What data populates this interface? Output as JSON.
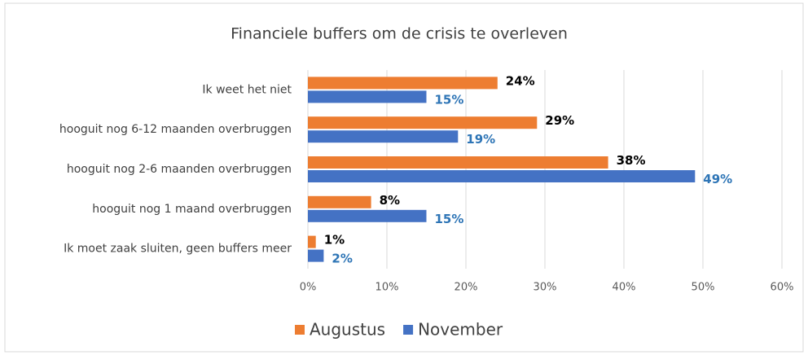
{
  "chart_data": {
    "type": "hbar",
    "title": "Financiele buffers om de crisis te overleven",
    "categories": [
      "Ik weet het niet",
      "hooguit nog 6-12 maanden overbruggen",
      "hooguit nog 2-6 maanden overbruggen",
      "hooguit nog 1 maand overbruggen",
      "Ik moet zaak sluiten,  geen buffers meer"
    ],
    "series": [
      {
        "name": "Augustus",
        "color": "#ed7d31",
        "label_color": "#000000",
        "values": [
          24,
          29,
          38,
          8,
          1
        ],
        "value_labels": [
          "24%",
          "29%",
          "38%",
          "8%",
          "1%"
        ]
      },
      {
        "name": "November",
        "color": "#4472c4",
        "label_color": "#2e75b6",
        "values": [
          15,
          19,
          49,
          15,
          2
        ],
        "value_labels": [
          "15%",
          "19%",
          "49%",
          "15%",
          "2%"
        ]
      }
    ],
    "xlim": [
      0,
      60
    ],
    "xticks": [
      {
        "value": 0,
        "label": "0%"
      },
      {
        "value": 10,
        "label": "10%"
      },
      {
        "value": 20,
        "label": "20%"
      },
      {
        "value": 30,
        "label": "30%"
      },
      {
        "value": 40,
        "label": "40%"
      },
      {
        "value": 50,
        "label": "50%"
      },
      {
        "value": 60,
        "label": "60%"
      }
    ],
    "grid": true,
    "legend": "bottom"
  }
}
